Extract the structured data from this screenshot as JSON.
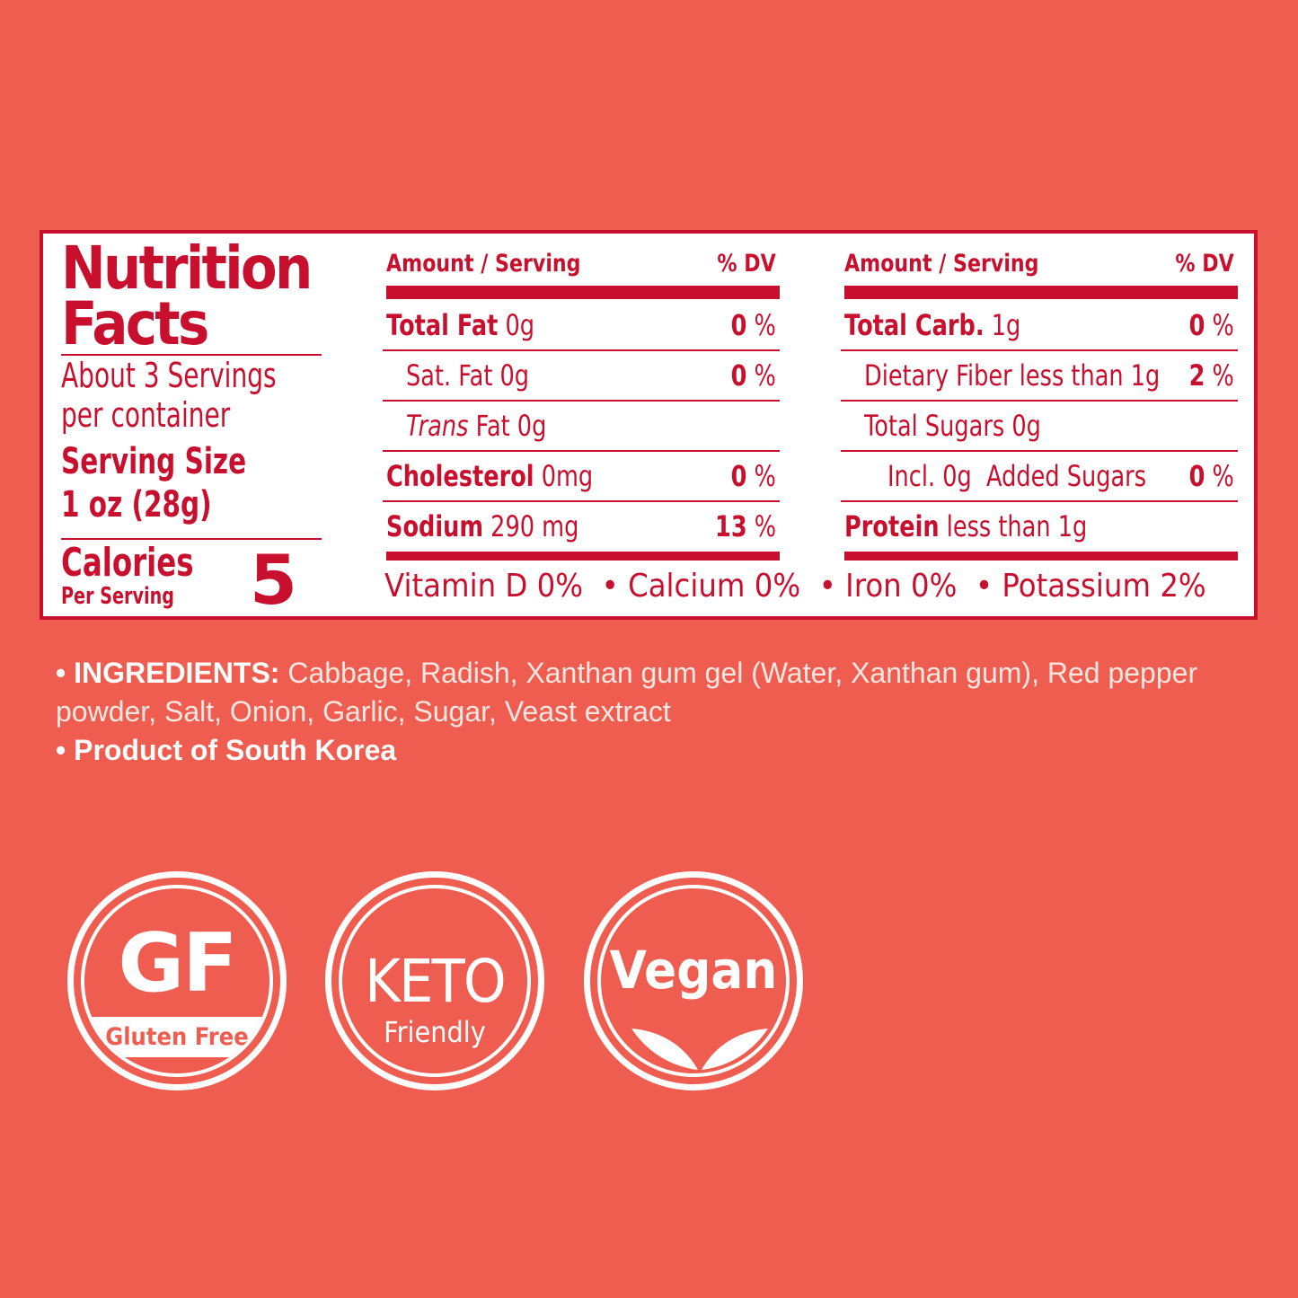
{
  "nutrition": {
    "title_line1": "Nutrition",
    "title_line2": "Facts",
    "servings_line1": "About 3 Servings",
    "servings_line2": "per container",
    "serving_size_label": "Serving Size",
    "serving_size_value": "1 oz (28g)",
    "calories_label": "Calories",
    "calories_sub": "Per Serving",
    "calories_value": "5",
    "left_col": {
      "header_amount": "Amount / Serving",
      "header_dv": "% DV",
      "rows": [
        {
          "bold": "Total Fat",
          "text": " 0g",
          "dv": "0",
          "unit": " %"
        },
        {
          "bold": "",
          "text": "Sat. Fat 0g",
          "dv": "0",
          "unit": " %"
        },
        {
          "italic": "Trans",
          "text": " Fat 0g",
          "dv": "",
          "unit": ""
        },
        {
          "bold": "Cholesterol",
          "text": " 0mg",
          "dv": "0",
          "unit": " %"
        },
        {
          "bold": "Sodium",
          "text": " 290 mg",
          "dv": "13",
          "unit": " %"
        }
      ]
    },
    "right_col": {
      "header_amount": "Amount / Serving",
      "header_dv": "% DV",
      "rows": [
        {
          "bold": "Total Carb.",
          "text": " 1g",
          "dv": "0",
          "unit": " %"
        },
        {
          "bold": "",
          "text": "Dietary Fiber less than 1g",
          "dv": "2",
          "unit": " %"
        },
        {
          "bold": "",
          "text": "Total Sugars 0g",
          "dv": "",
          "unit": ""
        },
        {
          "bold": "",
          "text": "Incl. 0g  Added Sugars",
          "dv": "0",
          "unit": " %"
        },
        {
          "bold": "Protein",
          "text": " less than 1g",
          "dv": "",
          "unit": ""
        }
      ]
    },
    "vitamins": "Vitamin D 0%  • Calcium 0%  • Iron 0%  • Potassium 2%"
  },
  "ingredients": {
    "label": "• INGREDIENTS:",
    "text": " Cabbage, Radish, Xanthan gum gel (Water, Xanthan gum), Red pepper powder, Salt, Onion, Garlic, Sugar, Veast extract",
    "origin": "• Product of South Korea"
  },
  "badges": {
    "gf": {
      "main": "GF",
      "sub": "Gluten Free"
    },
    "keto": {
      "main": "KETO",
      "sub": "Friendly"
    },
    "vegan": {
      "main": "Vegan",
      "icon": "leaves-icon"
    }
  },
  "colors": {
    "background": "#ee5d4f",
    "label_red": "#c8102e",
    "panel": "#ffffff"
  }
}
